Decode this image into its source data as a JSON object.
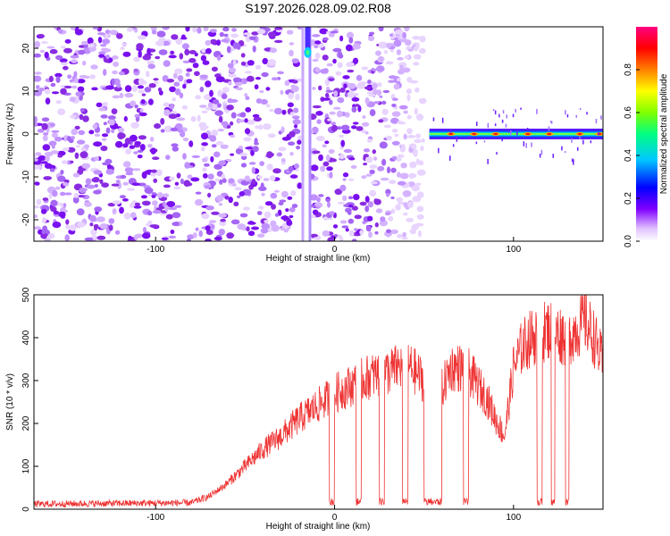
{
  "title": "S197.2026.028.09.02.R08",
  "chart_data": [
    {
      "type": "heatmap",
      "xlabel": "Height of straight line (km)",
      "ylabel": "Frequency (Hz)",
      "xlim": [
        -168,
        150
      ],
      "ylim": [
        -25,
        25
      ],
      "xticks": [
        -100,
        0,
        100
      ],
      "xtick_labels": [
        "-100",
        "0",
        "100"
      ],
      "yticks": [
        -20,
        -10,
        0,
        10,
        20
      ],
      "ytick_labels": [
        "-20",
        "-10",
        "0",
        "10",
        "20"
      ],
      "colorbar": {
        "label": "Normalized spectral amplitude",
        "range": [
          0,
          1
        ],
        "ticks": [
          0.0,
          0.2,
          0.4,
          0.6,
          0.8
        ],
        "tick_labels": [
          "0.0",
          "0.2",
          "0.4",
          "0.6",
          "0.8"
        ],
        "colormap": [
          "#f0d0ff",
          "#8000ff",
          "#0000ff",
          "#00c8ff",
          "#00ff80",
          "#80ff00",
          "#ffff00",
          "#ff8000",
          "#ff0000",
          "#ff0080"
        ]
      },
      "features": {
        "noise_region_x": [
          -168,
          50
        ],
        "vertical_band_x": -16,
        "hotspot": {
          "x": -15,
          "y": 19,
          "value": 0.4
        },
        "tone_start_x": 53,
        "tone_frequency_hz": 0,
        "tone_peak_x": [
          65,
          78,
          90,
          108,
          120,
          137,
          148
        ]
      },
      "colors": {
        "noise": "#8a2be2"
      }
    },
    {
      "type": "line",
      "xlabel": "Height of straight line (km)",
      "ylabel": "SNR (10 * v/v)",
      "xlim": [
        -168,
        150
      ],
      "ylim": [
        0,
        500
      ],
      "xticks": [
        -100,
        0,
        100
      ],
      "xtick_labels": [
        "-100",
        "0",
        "100"
      ],
      "yticks": [
        0,
        100,
        200,
        300,
        400,
        500
      ],
      "ytick_labels": [
        "0",
        "100",
        "200",
        "300",
        "400",
        "500"
      ],
      "series": [
        {
          "name": "SNR",
          "color": "#ee3333",
          "x": [
            -168,
            -140,
            -110,
            -80,
            -70,
            -60,
            -50,
            -40,
            -30,
            -20,
            -10,
            0,
            10,
            20,
            30,
            40,
            50,
            55,
            60,
            65,
            70,
            75,
            80,
            85,
            90,
            95,
            100,
            105,
            110,
            115,
            120,
            125,
            130,
            135,
            140,
            145,
            150
          ],
          "values": [
            12,
            13,
            14,
            15,
            30,
            60,
            100,
            140,
            170,
            210,
            240,
            270,
            290,
            310,
            320,
            340,
            300,
            30,
            280,
            330,
            330,
            320,
            290,
            260,
            210,
            170,
            330,
            380,
            400,
            410,
            420,
            410,
            400,
            420,
            440,
            400,
            340
          ]
        }
      ],
      "dropouts": [
        {
          "from": -3,
          "to": 0
        },
        {
          "from": 12,
          "to": 15
        },
        {
          "from": 25,
          "to": 28
        },
        {
          "from": 38,
          "to": 41
        },
        {
          "from": 50,
          "to": 60
        },
        {
          "from": 72,
          "to": 75
        },
        {
          "from": 113,
          "to": 116
        },
        {
          "from": 121,
          "to": 123
        },
        {
          "from": 129,
          "to": 131
        }
      ]
    }
  ]
}
